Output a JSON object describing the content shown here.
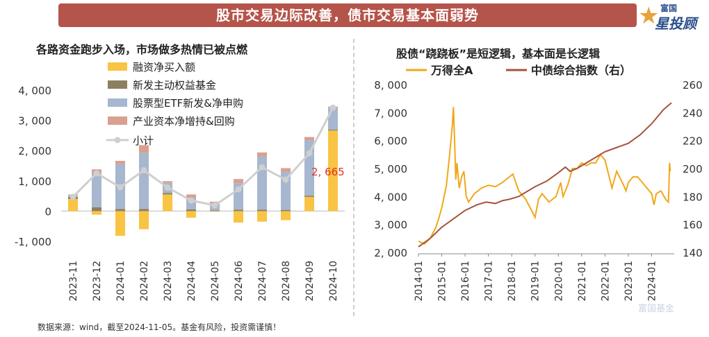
{
  "header": {
    "title": "股市交易边际改善，债市交易基本面弱势",
    "logo_top": "富国",
    "logo_main": "星投顾"
  },
  "left_title": "各路资金跑步入场，市场做多热情已被点燃",
  "right_title": "股债“跷跷板”是短逻辑，基本面是长逻辑",
  "footer": "数据来源：wind，截至2024-11-05。基金有风险，投资需谨慎！",
  "watermark": "富国基金",
  "colors": {
    "margin": "#f9c443",
    "newfund": "#8c7f62",
    "etf": "#a6b7cf",
    "industry": "#d9a08f",
    "total": "#cfcfcf",
    "wind_a": "#f0a818",
    "bond_index": "#a5533a"
  },
  "chart_data": [
    {
      "type": "bar",
      "stacked": true,
      "categories": [
        "2023-11",
        "2023-12",
        "2024-01",
        "2024-02",
        "2024-03",
        "2024-04",
        "2024-05",
        "2024-06",
        "2024-07",
        "2024-08",
        "2024-09",
        "2024-10"
      ],
      "series": [
        {
          "name": "融资净买入额",
          "values": [
            400,
            -120,
            -820,
            -600,
            550,
            -220,
            -20,
            -380,
            -350,
            -300,
            470,
            2665
          ]
        },
        {
          "name": "新发主动权益基金",
          "values": [
            70,
            130,
            70,
            70,
            50,
            60,
            20,
            50,
            50,
            40,
            40,
            30
          ]
        },
        {
          "name": "股票型ETF新发&净申购",
          "values": [
            60,
            1130,
            1480,
            1850,
            330,
            370,
            230,
            870,
            1750,
            1250,
            1830,
            730
          ]
        },
        {
          "name": "产业资本净增持&回购",
          "values": [
            20,
            120,
            110,
            260,
            60,
            120,
            60,
            140,
            140,
            130,
            110,
            30
          ]
        },
        {
          "name": "小计",
          "type": "line",
          "values": [
            470,
            1250,
            790,
            1350,
            780,
            350,
            190,
            720,
            1450,
            1040,
            1910,
            3420
          ]
        }
      ],
      "annotation": "2, 665",
      "yticks": [
        "4, 000",
        "3, 000",
        "2, 000",
        "1, 000",
        "0",
        "-1, 000"
      ],
      "ytick_values": [
        4000,
        3000,
        2000,
        1000,
        0,
        -1000
      ],
      "ylim": [
        -1000,
        4000
      ]
    },
    {
      "type": "line",
      "x_ticks": [
        "2014-01",
        "2015-01",
        "2016-01",
        "2017-01",
        "2018-01",
        "2019-01",
        "2020-01",
        "2021-01",
        "2022-01",
        "2023-01",
        "2024-01"
      ],
      "xlim": [
        2014.0,
        2024.85
      ],
      "left_axis": {
        "ticks": [
          "8, 000",
          "7, 000",
          "6, 000",
          "5, 000",
          "4, 000",
          "3, 000",
          "2, 000"
        ],
        "values": [
          8000,
          7000,
          6000,
          5000,
          4000,
          3000,
          2000
        ],
        "ylim": [
          2000,
          8000
        ]
      },
      "right_axis": {
        "ticks": [
          "260",
          "240",
          "220",
          "200",
          "180",
          "160",
          "140"
        ],
        "values": [
          260,
          240,
          220,
          200,
          180,
          160,
          140
        ],
        "ylim": [
          140,
          260
        ]
      },
      "series": [
        {
          "name": "万得全A",
          "axis": "left",
          "x": [
            2014.0,
            2014.25,
            2014.5,
            2014.75,
            2014.9,
            2015.0,
            2015.2,
            2015.35,
            2015.45,
            2015.5,
            2015.55,
            2015.6,
            2015.65,
            2015.75,
            2015.85,
            2015.95,
            2016.05,
            2016.15,
            2016.4,
            2016.7,
            2017.0,
            2017.3,
            2017.6,
            2017.9,
            2018.05,
            2018.3,
            2018.6,
            2018.85,
            2019.0,
            2019.15,
            2019.3,
            2019.6,
            2019.9,
            2020.1,
            2020.2,
            2020.4,
            2020.6,
            2020.8,
            2021.0,
            2021.2,
            2021.4,
            2021.6,
            2021.8,
            2022.0,
            2022.15,
            2022.3,
            2022.5,
            2022.8,
            2022.9,
            2023.0,
            2023.2,
            2023.4,
            2023.6,
            2023.8,
            2024.0,
            2024.1,
            2024.2,
            2024.4,
            2024.6,
            2024.72,
            2024.77,
            2024.8
          ],
          "values": [
            2400,
            2300,
            2500,
            2900,
            3300,
            3600,
            4400,
            5600,
            6500,
            7200,
            6000,
            4600,
            5200,
            4300,
            4700,
            4900,
            4000,
            3800,
            4100,
            4300,
            4400,
            4350,
            4500,
            4700,
            4800,
            4200,
            3900,
            3500,
            3250,
            3900,
            4100,
            3800,
            4000,
            4500,
            4000,
            4400,
            5000,
            5000,
            5200,
            5100,
            5200,
            5200,
            5500,
            5300,
            4800,
            4300,
            4900,
            4400,
            4200,
            4500,
            4700,
            4700,
            4500,
            4300,
            4100,
            3700,
            4100,
            4200,
            3900,
            3800,
            5200,
            4900
          ]
        },
        {
          "name": "中债综合指数（右）",
          "axis": "right",
          "x": [
            2014.0,
            2014.5,
            2015.0,
            2015.5,
            2016.0,
            2016.5,
            2016.9,
            2017.3,
            2017.6,
            2017.9,
            2018.3,
            2018.6,
            2019.0,
            2019.5,
            2020.0,
            2020.3,
            2020.5,
            2020.8,
            2021.0,
            2021.5,
            2022.0,
            2022.5,
            2023.0,
            2023.5,
            2024.0,
            2024.5,
            2024.85
          ],
          "values": [
            144,
            150,
            158,
            164,
            170,
            174,
            176,
            175,
            177,
            178,
            180,
            183,
            187,
            191,
            197,
            201,
            198,
            200,
            202,
            207,
            212,
            215,
            218,
            224,
            232,
            242,
            247
          ]
        }
      ]
    }
  ]
}
